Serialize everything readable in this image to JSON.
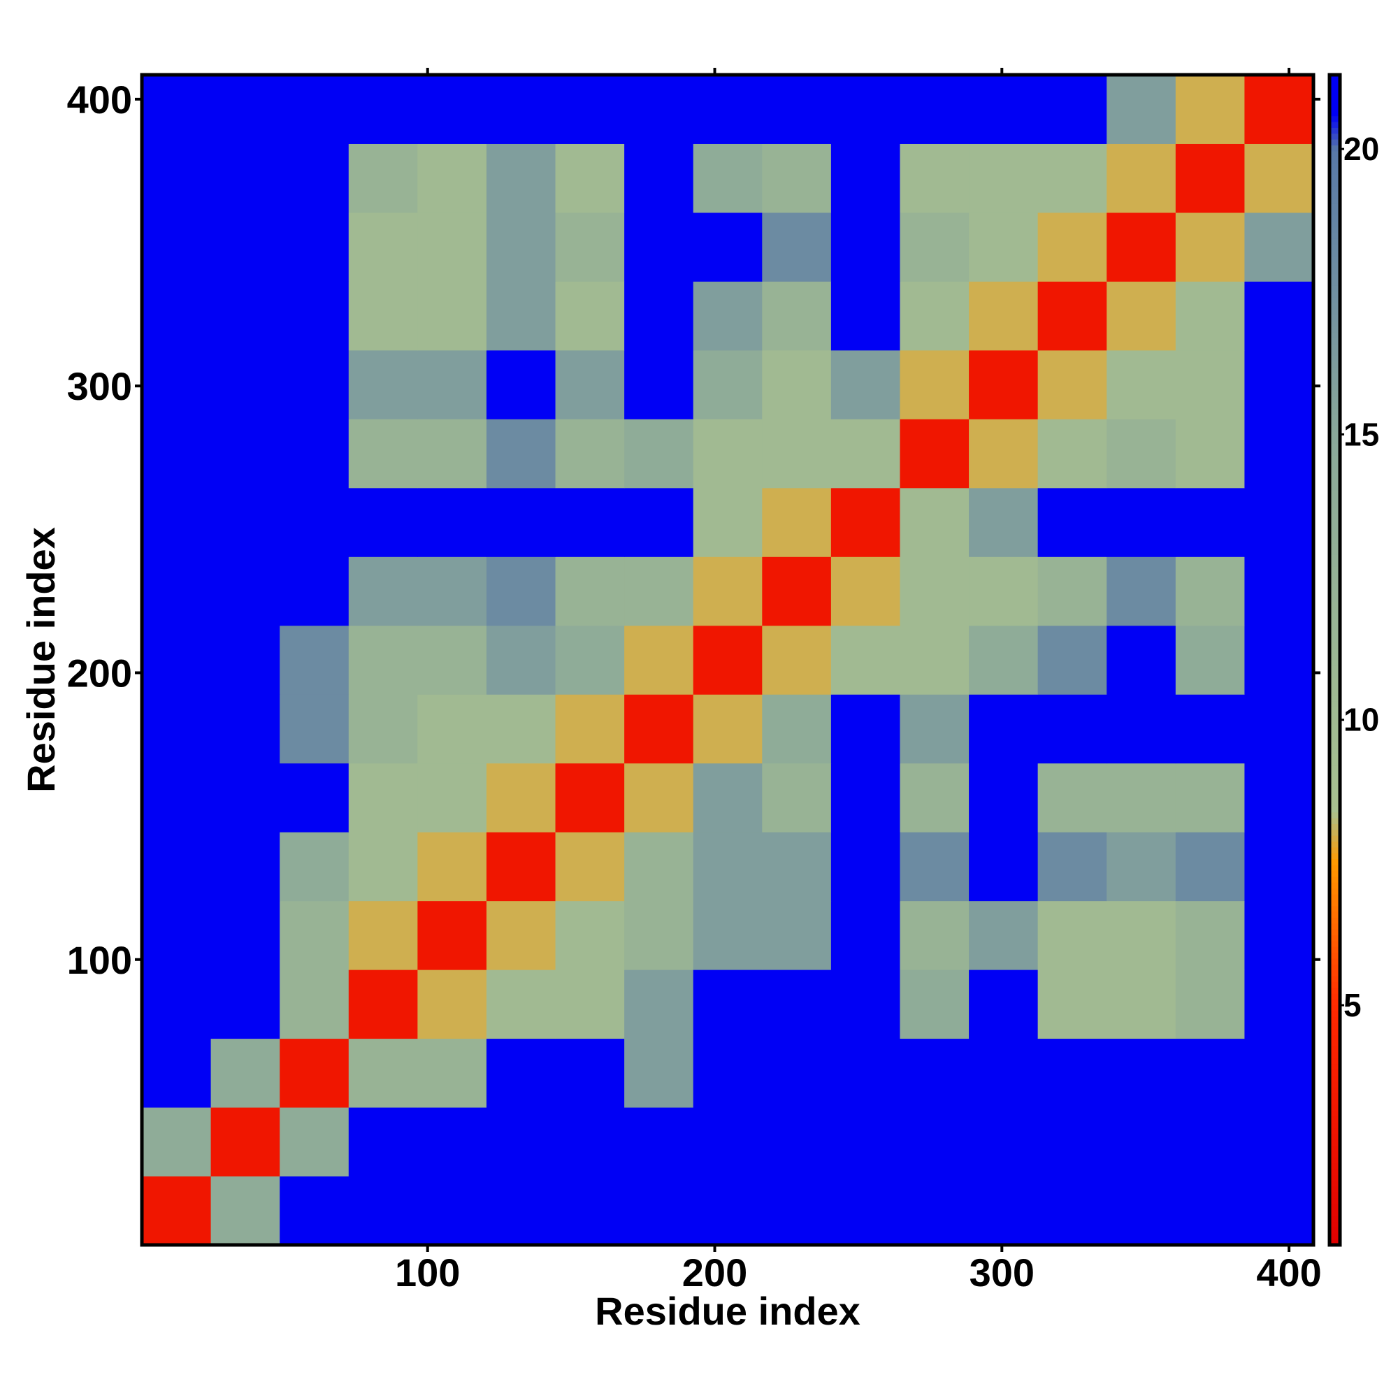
{
  "chart_data": {
    "type": "heatmap",
    "xlabel": "Residue index",
    "ylabel": "Residue index",
    "xlim": [
      0.5,
      408.5
    ],
    "ylim": [
      0.5,
      408.5
    ],
    "xticks": [
      100,
      200,
      300,
      400
    ],
    "yticks": [
      100,
      200,
      300,
      400
    ],
    "xbins": [
      0.5,
      24.5,
      48.5,
      72.5,
      96.5,
      120.5,
      144.5,
      168.5,
      192.5,
      216.5,
      240.5,
      264.5,
      288.5,
      312.5,
      336.5,
      360.5,
      384.5,
      408.5
    ],
    "ybins": [
      0.5,
      24.5,
      48.5,
      72.5,
      96.5,
      120.5,
      144.5,
      168.5,
      192.5,
      216.5,
      240.5,
      264.5,
      288.5,
      312.5,
      336.5,
      360.5,
      384.5,
      408.5
    ],
    "values": [
      [
        3,
        14,
        21,
        21,
        21,
        21,
        21,
        21,
        21,
        21,
        21,
        21,
        21,
        21,
        21,
        21,
        21
      ],
      [
        14,
        3,
        14,
        21,
        21,
        21,
        21,
        21,
        21,
        21,
        21,
        21,
        21,
        21,
        21,
        21,
        21
      ],
      [
        21,
        14,
        3,
        12,
        12,
        21,
        21,
        16,
        21,
        21,
        21,
        21,
        21,
        21,
        21,
        21,
        21
      ],
      [
        21,
        21,
        12,
        3,
        8,
        10,
        10,
        16,
        21,
        21,
        21,
        14,
        21,
        10,
        10,
        12,
        21
      ],
      [
        21,
        21,
        12,
        8,
        3,
        8,
        10,
        12,
        16,
        16,
        21,
        12,
        16,
        10,
        10,
        12,
        21
      ],
      [
        21,
        21,
        14,
        10,
        8,
        3,
        8,
        12,
        16,
        16,
        21,
        18,
        21,
        18,
        16,
        18,
        21
      ],
      [
        21,
        21,
        21,
        10,
        10,
        8,
        3,
        8,
        16,
        12,
        21,
        12,
        21,
        12,
        12,
        12,
        21
      ],
      [
        21,
        21,
        18,
        12,
        10,
        10,
        8,
        3,
        8,
        14,
        21,
        16,
        21,
        21,
        21,
        21,
        21
      ],
      [
        21,
        21,
        18,
        12,
        12,
        16,
        14,
        8,
        3,
        8,
        10,
        10,
        14,
        18,
        21,
        14,
        21
      ],
      [
        21,
        21,
        21,
        16,
        16,
        18,
        12,
        12,
        8,
        3,
        8,
        10,
        10,
        12,
        18,
        12,
        21
      ],
      [
        21,
        21,
        21,
        21,
        21,
        21,
        21,
        21,
        10,
        8,
        3,
        10,
        16,
        21,
        21,
        21,
        21
      ],
      [
        21,
        21,
        21,
        12,
        12,
        18,
        12,
        14,
        10,
        10,
        10,
        3,
        8,
        10,
        12,
        10,
        21
      ],
      [
        21,
        21,
        21,
        16,
        16,
        21,
        16,
        21,
        14,
        10,
        16,
        8,
        3,
        8,
        10,
        10,
        21
      ],
      [
        21,
        21,
        21,
        10,
        10,
        16,
        10,
        21,
        16,
        12,
        21,
        10,
        8,
        3,
        8,
        10,
        21
      ],
      [
        21,
        21,
        21,
        10,
        10,
        16,
        12,
        21,
        21,
        18,
        21,
        12,
        10,
        8,
        3,
        8,
        16
      ],
      [
        21,
        21,
        21,
        12,
        10,
        16,
        10,
        21,
        14,
        12,
        21,
        10,
        10,
        10,
        8,
        3,
        8
      ],
      [
        21,
        21,
        21,
        21,
        21,
        21,
        21,
        21,
        21,
        21,
        21,
        21,
        21,
        21,
        16,
        8,
        3
      ]
    ],
    "colorbar": {
      "lim": [
        0.8,
        21.3
      ],
      "ticks": [
        5,
        10,
        15,
        20
      ]
    },
    "colorscale": [
      [
        0.8,
        "#e00000"
      ],
      [
        5,
        "#ff2a00"
      ],
      [
        7.5,
        "#ff9900"
      ],
      [
        8.4,
        "#a8c090"
      ],
      [
        15,
        "#8aa89a"
      ],
      [
        20,
        "#5878a8"
      ],
      [
        20.6,
        "#0000f5"
      ],
      [
        21.3,
        "#0000f5"
      ]
    ]
  }
}
